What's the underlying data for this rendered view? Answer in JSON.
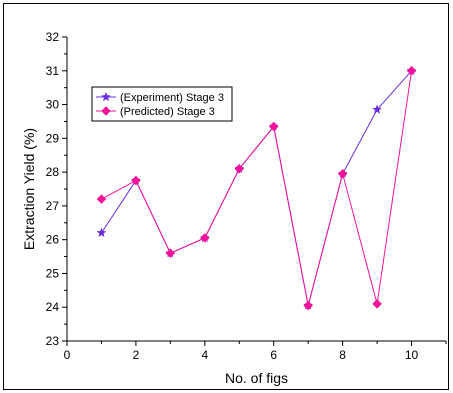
{
  "chart_data": {
    "type": "line",
    "title": "",
    "xlabel": "No. of figs",
    "ylabel": "Extraction Yield (%)",
    "xlim": [
      0,
      11
    ],
    "ylim": [
      23,
      32
    ],
    "xticks": [
      0,
      2,
      4,
      6,
      8,
      10
    ],
    "yticks": [
      23,
      24,
      25,
      26,
      27,
      28,
      29,
      30,
      31,
      32
    ],
    "grid": false,
    "legend_position": "upper-left",
    "x": [
      1,
      2,
      3,
      4,
      5,
      6,
      7,
      8,
      9,
      10
    ],
    "series": [
      {
        "name": "(Experiment) Stage 3",
        "marker": "star",
        "color": "#6a2be0",
        "values": [
          26.2,
          27.75,
          25.6,
          26.05,
          28.1,
          29.35,
          24.05,
          27.95,
          29.85,
          31.0
        ]
      },
      {
        "name": "(Predicted) Stage 3",
        "marker": "diamond",
        "color": "#f2139a",
        "values": [
          27.2,
          27.75,
          25.6,
          26.05,
          28.1,
          29.35,
          24.05,
          27.95,
          24.1,
          31.0
        ]
      }
    ]
  }
}
